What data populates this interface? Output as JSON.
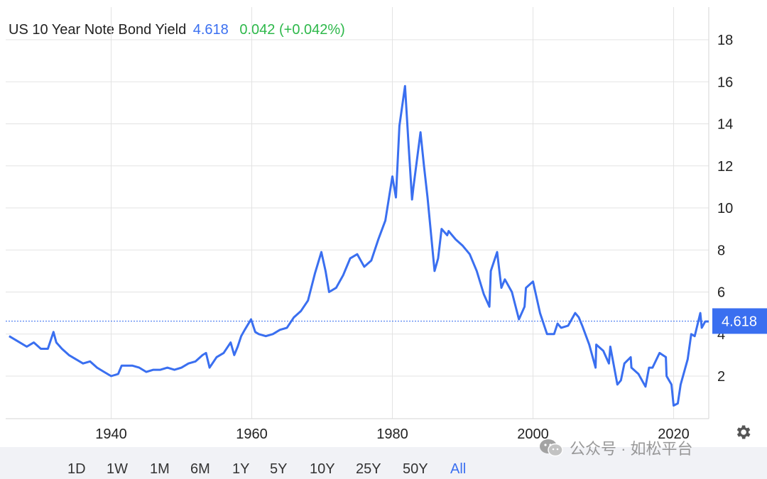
{
  "header": {
    "title": "US 10 Year Note Bond Yield",
    "price": "4.618",
    "change": "0.042 (+0.042%)"
  },
  "colors": {
    "line": "#3a6ff0",
    "positive": "#2db84a",
    "grid": "#e3e3e3",
    "axis_text": "#222222",
    "range_bar_bg": "#f1f2f6"
  },
  "range_buttons": [
    {
      "label": "1D",
      "active": false
    },
    {
      "label": "1W",
      "active": false
    },
    {
      "label": "1M",
      "active": false
    },
    {
      "label": "6M",
      "active": false
    },
    {
      "label": "1Y",
      "active": false
    },
    {
      "label": "5Y",
      "active": false
    },
    {
      "label": "10Y",
      "active": false
    },
    {
      "label": "25Y",
      "active": false
    },
    {
      "label": "50Y",
      "active": false
    },
    {
      "label": "All",
      "active": true
    }
  ],
  "watermark": "公众号 · 如松平台",
  "icons": {
    "settings": "gear-icon",
    "watermark_logo": "wechat-icon"
  },
  "chart_data": {
    "type": "line",
    "title": "US 10 Year Note Bond Yield",
    "xlim": [
      1925,
      2025
    ],
    "ylim": [
      0,
      19
    ],
    "y_ticks": [
      2,
      4,
      6,
      8,
      10,
      12,
      14,
      16,
      18
    ],
    "y_tick_labels": [
      "2",
      "4",
      "6",
      "8",
      "10",
      "12",
      "14",
      "16",
      "18"
    ],
    "x_ticks": [
      1940,
      1960,
      1980,
      2000,
      2020
    ],
    "x_tick_labels": [
      "1940",
      "1960",
      "1980",
      "2000",
      "2020"
    ],
    "grid": true,
    "current_value": 4.618,
    "current_label": "4.618",
    "series": [
      {
        "x": [
          1925.5,
          1927,
          1928,
          1929,
          1930,
          1931,
          1931.8,
          1932.2,
          1933,
          1934,
          1935,
          1936,
          1937,
          1938,
          1939,
          1940,
          1941,
          1941.5,
          1942,
          1943,
          1944,
          1945,
          1946,
          1947,
          1948,
          1949,
          1950,
          1951,
          1952,
          1953,
          1953.5,
          1954,
          1955,
          1956,
          1957,
          1957.5,
          1958,
          1958.5,
          1959,
          1959.9,
          1960.5,
          1961,
          1962,
          1963,
          1964,
          1965,
          1966,
          1967,
          1968,
          1969,
          1969.9,
          1970.5,
          1971,
          1972,
          1973,
          1974,
          1975,
          1976,
          1977,
          1978,
          1979,
          1980,
          1980.5,
          1981,
          1981.8,
          1982.3,
          1982.8,
          1983,
          1984,
          1984.5,
          1985,
          1986,
          1986.5,
          1987,
          1987.8,
          1988,
          1989,
          1990,
          1991,
          1992,
          1993,
          1993.8,
          1994,
          1994.9,
          1995.5,
          1996,
          1997,
          1998,
          1998.8,
          1999,
          2000,
          2001,
          2002,
          2003,
          2003.5,
          2004,
          2005,
          2006,
          2006.5,
          2007,
          2008,
          2008.9,
          2009,
          2010,
          2010.8,
          2011,
          2012,
          2012.5,
          2013,
          2013.9,
          2014,
          2015,
          2016,
          2016.5,
          2017,
          2018,
          2018.9,
          2019,
          2019.7,
          2020,
          2020.6,
          2021,
          2022,
          2022.5,
          2023,
          2023.8,
          2024,
          2024.5,
          2025
        ],
        "y": [
          3.9,
          3.6,
          3.4,
          3.6,
          3.3,
          3.3,
          4.1,
          3.6,
          3.3,
          3.0,
          2.8,
          2.6,
          2.7,
          2.4,
          2.2,
          2.0,
          2.1,
          2.5,
          2.5,
          2.5,
          2.4,
          2.2,
          2.3,
          2.3,
          2.4,
          2.3,
          2.4,
          2.6,
          2.7,
          3.0,
          3.1,
          2.4,
          2.9,
          3.1,
          3.6,
          3.0,
          3.4,
          3.9,
          4.2,
          4.7,
          4.1,
          4.0,
          3.9,
          4.0,
          4.2,
          4.3,
          4.8,
          5.1,
          5.6,
          6.9,
          7.9,
          7.0,
          6.0,
          6.2,
          6.8,
          7.6,
          7.8,
          7.2,
          7.5,
          8.5,
          9.4,
          11.5,
          10.5,
          13.9,
          15.8,
          13.0,
          10.4,
          11.0,
          13.6,
          12.0,
          10.5,
          7.0,
          7.6,
          9.0,
          8.7,
          8.9,
          8.5,
          8.2,
          7.8,
          7.0,
          5.9,
          5.3,
          7.0,
          7.9,
          6.2,
          6.6,
          6.0,
          4.7,
          5.3,
          6.2,
          6.5,
          5.0,
          4.0,
          4.0,
          4.5,
          4.3,
          4.4,
          5.0,
          4.8,
          4.4,
          3.5,
          2.4,
          3.5,
          3.2,
          2.6,
          3.4,
          1.6,
          1.8,
          2.6,
          2.9,
          2.4,
          2.1,
          1.5,
          2.4,
          2.4,
          3.1,
          2.9,
          2.0,
          1.6,
          0.6,
          0.7,
          1.6,
          2.8,
          4.0,
          3.9,
          5.0,
          4.3,
          4.6,
          4.6
        ]
      }
    ]
  }
}
